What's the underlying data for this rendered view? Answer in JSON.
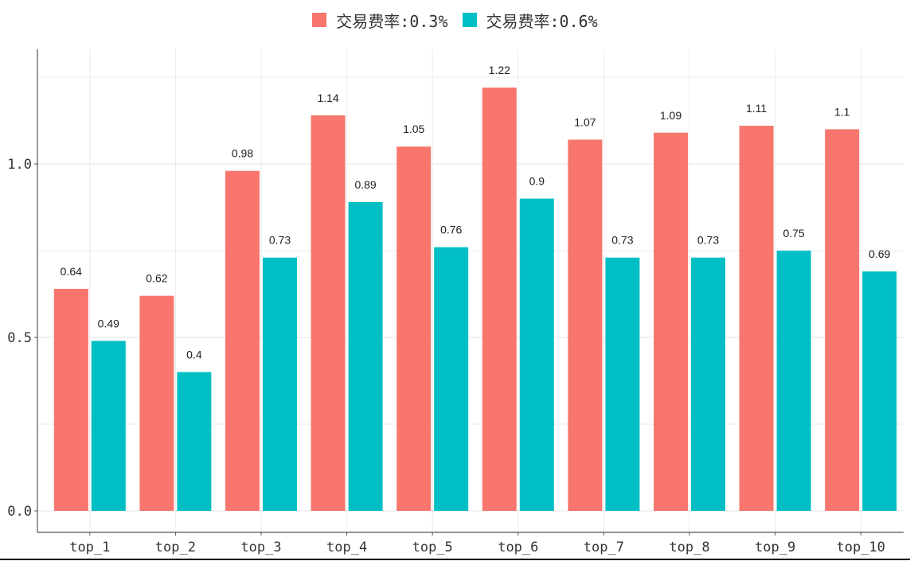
{
  "chart_data": {
    "type": "bar",
    "categories": [
      "top_1",
      "top_2",
      "top_3",
      "top_4",
      "top_5",
      "top_6",
      "top_7",
      "top_8",
      "top_9",
      "top_10"
    ],
    "series": [
      {
        "name": "交易费率:0.3%",
        "color": "#F8766D",
        "values": [
          0.64,
          0.62,
          0.98,
          1.14,
          1.05,
          1.22,
          1.07,
          1.09,
          1.11,
          1.1
        ],
        "labels": [
          "0.64",
          "0.62",
          "0.98",
          "1.14",
          "1.05",
          "1.22",
          "1.07",
          "1.09",
          "1.11",
          "1.1"
        ]
      },
      {
        "name": "交易费率:0.6%",
        "color": "#00BFC4",
        "values": [
          0.49,
          0.4,
          0.73,
          0.89,
          0.76,
          0.9,
          0.73,
          0.73,
          0.75,
          0.69
        ],
        "labels": [
          "0.49",
          "0.4",
          "0.73",
          "0.89",
          "0.76",
          "0.9",
          "0.73",
          "0.73",
          "0.75",
          "0.69"
        ]
      }
    ],
    "ylim": [
      0,
      1.3
    ],
    "yticks": [
      "0.0",
      "0.5",
      "1.0"
    ],
    "ytick_values": [
      0,
      0.5,
      1.0
    ],
    "xlabel": "",
    "ylabel": "",
    "legend_position": "top-center",
    "grid": true,
    "grid_color": "#EBEBEB",
    "axis_color": "#555555"
  }
}
